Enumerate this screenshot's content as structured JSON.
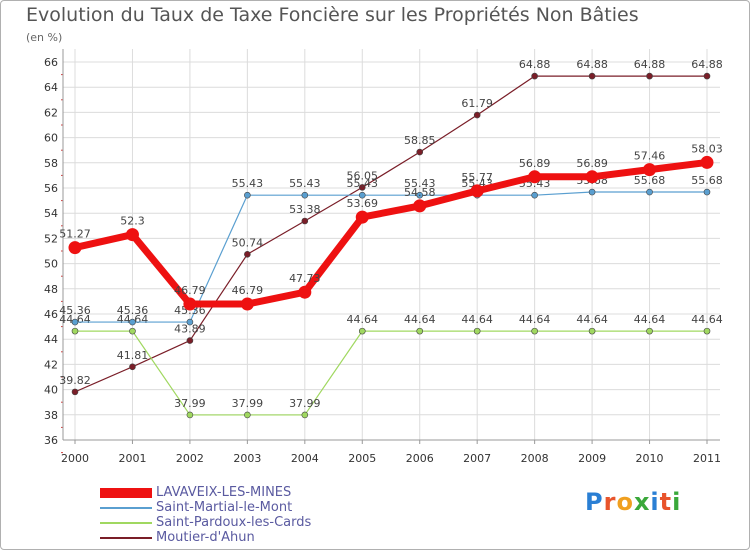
{
  "title": "Evolution du Taux de Taxe Foncière sur les Propriétés Non Bâties",
  "subtitle": "(en %)",
  "logo": {
    "letters": [
      "P",
      "r",
      "o",
      "x",
      "i",
      "t",
      "i"
    ],
    "colors": [
      "#2a7fd4",
      "#e8542c",
      "#f0a020",
      "#3aa83a",
      "#2a7fd4",
      "#e8542c",
      "#3aa83a"
    ]
  },
  "chart_data": {
    "type": "line",
    "title": "Evolution du Taux de Taxe Foncière sur les Propriétés Non Bâties",
    "ylabel": "(en %)",
    "categories": [
      "2000",
      "2001",
      "2002",
      "2003",
      "2004",
      "2005",
      "2006",
      "2007",
      "2008",
      "2009",
      "2010",
      "2011"
    ],
    "yticks": [
      "36",
      "38",
      "40",
      "42",
      "44",
      "46",
      "48",
      "50",
      "52",
      "54",
      "56",
      "58",
      "60",
      "62",
      "64",
      "66"
    ],
    "ylim": [
      36,
      66
    ],
    "series": [
      {
        "name": "Moutier-d'Ahun",
        "color": "#7a1e28",
        "style": "thin",
        "values": [
          39.82,
          41.81,
          43.89,
          50.74,
          53.38,
          56.05,
          58.85,
          61.79,
          64.88,
          64.88,
          64.88,
          64.88
        ],
        "labels": [
          "39.82",
          "41.81",
          "43.89",
          "50.74",
          "53.38",
          "56.05",
          "58.85",
          "61.79",
          "64.88",
          "64.88",
          "64.88",
          "64.88"
        ]
      },
      {
        "name": "Saint-Pardoux-les-Cards",
        "color": "#a0d860",
        "style": "thin",
        "values": [
          44.64,
          44.64,
          37.99,
          37.99,
          37.99,
          44.64,
          44.64,
          44.64,
          44.64,
          44.64,
          44.64,
          44.64
        ],
        "labels": [
          "44.64",
          "44.64",
          "37.99",
          "37.99",
          "37.99",
          "44.64",
          "44.64",
          "44.64",
          "44.64",
          "44.64",
          "44.64",
          "44.64"
        ]
      },
      {
        "name": "Saint-Martial-le-Mont",
        "color": "#5a9fd0",
        "style": "thin",
        "values": [
          45.36,
          45.36,
          45.36,
          55.43,
          55.43,
          55.43,
          55.43,
          55.43,
          55.43,
          55.68,
          55.68,
          55.68
        ],
        "labels": [
          "45.36",
          "45.36",
          "45.36",
          "55.43",
          "55.43",
          "55.43",
          "55.43",
          "55.43",
          "55.43",
          "55.68",
          "55.68",
          "55.68"
        ]
      },
      {
        "name": "LAVAVEIX-LES-MINES",
        "color": "#ee1111",
        "style": "thick",
        "values": [
          51.27,
          52.3,
          46.79,
          46.79,
          47.73,
          53.69,
          54.58,
          55.77,
          56.89,
          56.89,
          57.46,
          58.03
        ],
        "labels": [
          "51.27",
          "52.3",
          "46.79",
          "46.79",
          "47.73",
          "53.69",
          "54.58",
          "55.77",
          "56.89",
          "56.89",
          "57.46",
          "58.03"
        ]
      }
    ],
    "legend": [
      "LAVAVEIX-LES-MINES",
      "Saint-Martial-le-Mont",
      "Saint-Pardoux-les-Cards",
      "Moutier-d'Ahun"
    ],
    "legend_position": "bottom-left",
    "grid": true
  }
}
